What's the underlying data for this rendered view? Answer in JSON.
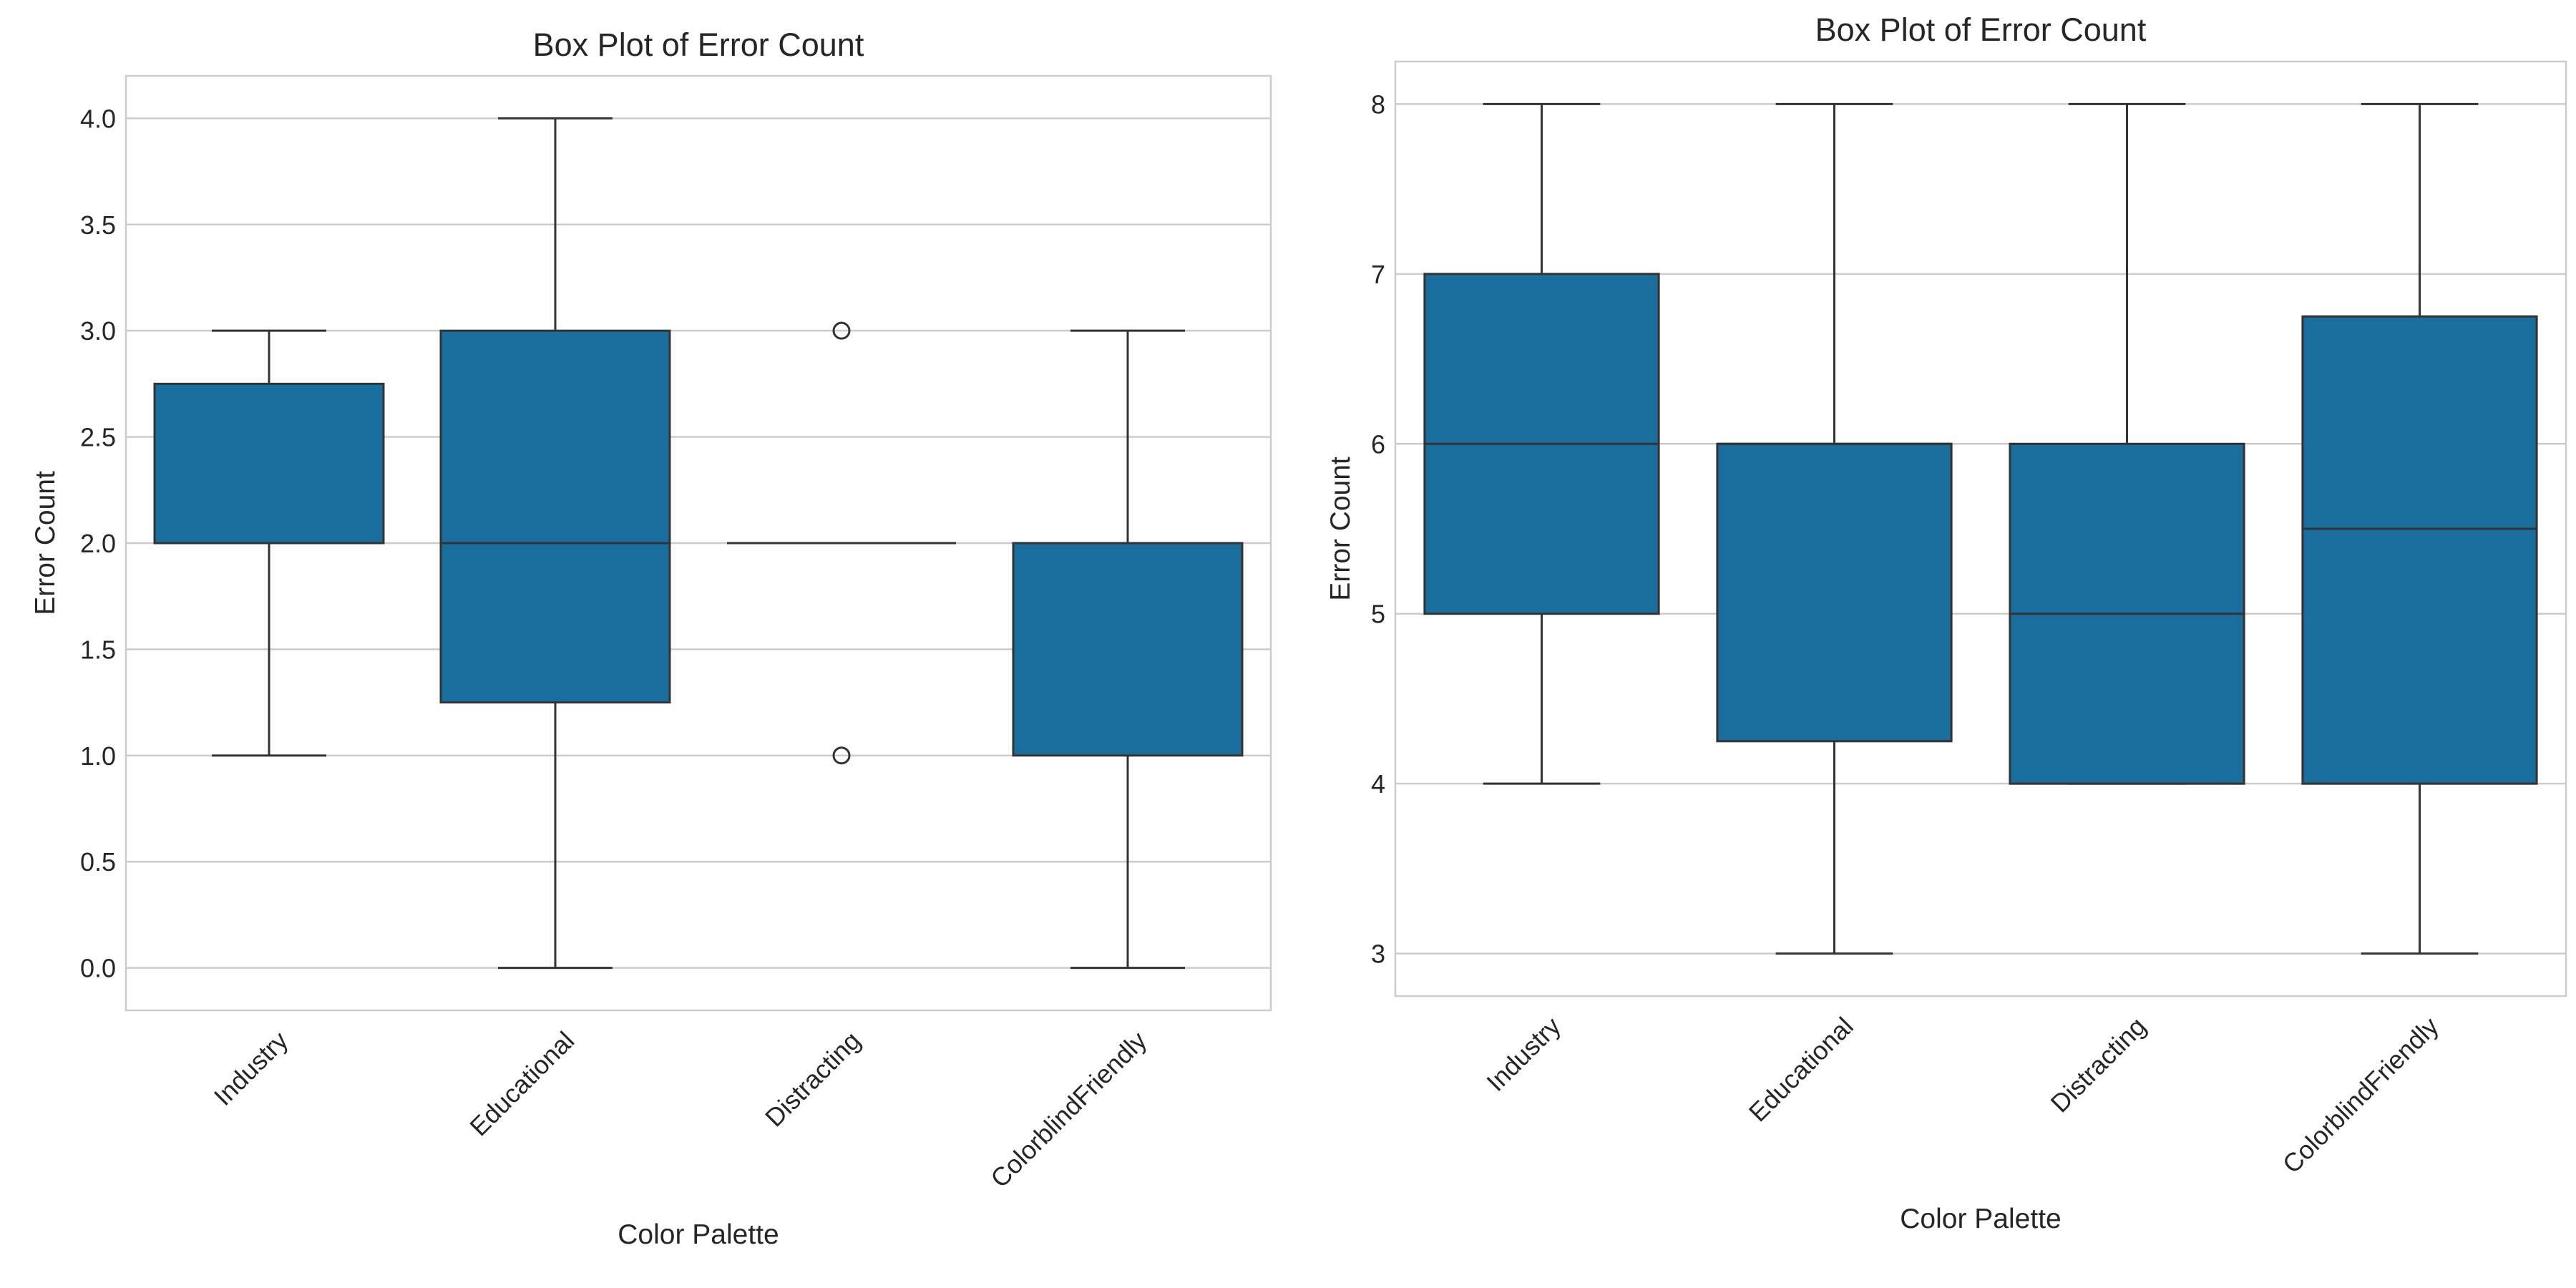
{
  "colors": {
    "box_fill": "#1a6e9e",
    "line": "#333333",
    "grid": "#cccccc",
    "frame": "#cccccc",
    "text": "#262626"
  },
  "chart_data": [
    {
      "type": "box",
      "title": "Box Plot of Error Count",
      "xlabel": "Color Palette",
      "ylabel": "Error Count",
      "ylim": [
        -0.2,
        4.2
      ],
      "yticks": [
        0.0,
        0.5,
        1.0,
        1.5,
        2.0,
        2.5,
        3.0,
        3.5,
        4.0
      ],
      "ytick_labels": [
        "0.0",
        "0.5",
        "1.0",
        "1.5",
        "2.0",
        "2.5",
        "3.0",
        "3.5",
        "4.0"
      ],
      "grid": "horizontal",
      "categories": [
        "Industry",
        "Educational",
        "Distracting",
        "ColorblindFriendly"
      ],
      "boxes": [
        {
          "category": "Industry",
          "whisker_low": 1.0,
          "q1": 2.0,
          "median": 2.0,
          "q3": 2.75,
          "whisker_high": 3.0,
          "outliers": []
        },
        {
          "category": "Educational",
          "whisker_low": 0.0,
          "q1": 1.25,
          "median": 2.0,
          "q3": 3.0,
          "whisker_high": 4.0,
          "outliers": []
        },
        {
          "category": "Distracting",
          "whisker_low": 2.0,
          "q1": 2.0,
          "median": 2.0,
          "q3": 2.0,
          "whisker_high": 2.0,
          "outliers": [
            1.0,
            3.0
          ]
        },
        {
          "category": "ColorblindFriendly",
          "whisker_low": 0.0,
          "q1": 1.0,
          "median": 2.0,
          "q3": 2.0,
          "whisker_high": 3.0,
          "outliers": []
        }
      ]
    },
    {
      "type": "box",
      "title": "Box Plot of Error Count",
      "xlabel": "Color Palette",
      "ylabel": "Error Count",
      "ylim": [
        2.75,
        8.25
      ],
      "yticks": [
        3,
        4,
        5,
        6,
        7,
        8
      ],
      "ytick_labels": [
        "3",
        "4",
        "5",
        "6",
        "7",
        "8"
      ],
      "grid": "horizontal",
      "categories": [
        "Industry",
        "Educational",
        "Distracting",
        "ColorblindFriendly"
      ],
      "boxes": [
        {
          "category": "Industry",
          "whisker_low": 4,
          "q1": 5,
          "median": 6,
          "q3": 7,
          "whisker_high": 8,
          "outliers": []
        },
        {
          "category": "Educational",
          "whisker_low": 3,
          "q1": 4.25,
          "median": 6,
          "q3": 6,
          "whisker_high": 8,
          "outliers": []
        },
        {
          "category": "Distracting",
          "whisker_low": 4,
          "q1": 4,
          "median": 5,
          "q3": 6,
          "whisker_high": 8,
          "outliers": []
        },
        {
          "category": "ColorblindFriendly",
          "whisker_low": 3,
          "q1": 4,
          "median": 5.5,
          "q3": 6.75,
          "whisker_high": 8,
          "outliers": []
        }
      ]
    }
  ]
}
